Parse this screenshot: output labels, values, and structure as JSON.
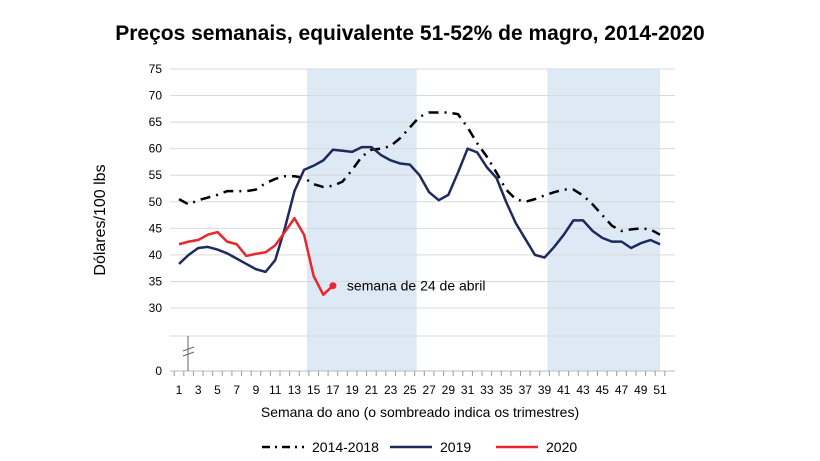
{
  "chart_data": {
    "type": "line",
    "title": "Preços semanais, equivalente 51-52% de magro, 2014-2020",
    "xlabel": "Semana do ano (o sombreado indica os trimestres)",
    "ylabel": "Dólares/100 lbs",
    "ylim": [
      0,
      75
    ],
    "y_axis_break": true,
    "yticks": [
      "0",
      "30",
      "35",
      "40",
      "45",
      "50",
      "55",
      "60",
      "65",
      "70",
      "75"
    ],
    "xticks": [
      "1",
      "3",
      "5",
      "7",
      "9",
      "11",
      "13",
      "15",
      "17",
      "19",
      "21",
      "23",
      "25",
      "27",
      "29",
      "31",
      "33",
      "35",
      "37",
      "39",
      "41",
      "43",
      "45",
      "47",
      "49",
      "51"
    ],
    "grid": "horizontal",
    "shaded_weeks": [
      [
        14.3,
        25.7
      ],
      [
        39.3,
        51
      ]
    ],
    "shade_color": "#dde9f5",
    "legend_position": "bottom",
    "annotation": {
      "text": "semana de 24 de abril",
      "week": 17,
      "value": 34.2
    },
    "series": [
      {
        "name": "2014-2018",
        "color": "#000000",
        "style": "dash-dot",
        "values": [
          50.5,
          49.5,
          50.3,
          50.8,
          51.3,
          52,
          52,
          52,
          52.3,
          53.5,
          54.3,
          54.8,
          54.8,
          54.5,
          53.3,
          52.8,
          53,
          53.8,
          56,
          58.5,
          59.8,
          60,
          60.5,
          62,
          64,
          66,
          66.8,
          66.8,
          66.8,
          66.5,
          64,
          61,
          58.5,
          55.5,
          52.3,
          50.5,
          50,
          50.5,
          51.2,
          51.8,
          52.3,
          52.3,
          51.2,
          49.5,
          47.5,
          45.5,
          44.5,
          44.8,
          45,
          44.8,
          43.8
        ]
      },
      {
        "name": "2019",
        "color": "#1f2a5c",
        "style": "solid",
        "values": [
          38.3,
          40,
          41.3,
          41.5,
          41,
          40.3,
          39.3,
          38.3,
          37.3,
          36.8,
          39,
          45,
          52,
          56,
          56.8,
          57.8,
          59.8,
          59.6,
          59.4,
          60.3,
          60.3,
          58.8,
          57.8,
          57.2,
          57,
          55,
          51.8,
          50.3,
          51.3,
          55.5,
          60,
          59.3,
          56.5,
          54.5,
          50,
          46,
          43,
          40,
          39.5,
          41.5,
          43.8,
          46.5,
          46.5,
          44.5,
          43.2,
          42.5,
          42.5,
          41.3,
          42.2,
          42.8,
          42
        ]
      },
      {
        "name": "2020",
        "color": "#e8262b",
        "style": "solid",
        "values": [
          42,
          42.5,
          42.8,
          43.8,
          44.3,
          42.5,
          42,
          39.8,
          40.2,
          40.5,
          41.8,
          44.3,
          46.9,
          43.8,
          36,
          32.5,
          34.2
        ]
      }
    ]
  }
}
